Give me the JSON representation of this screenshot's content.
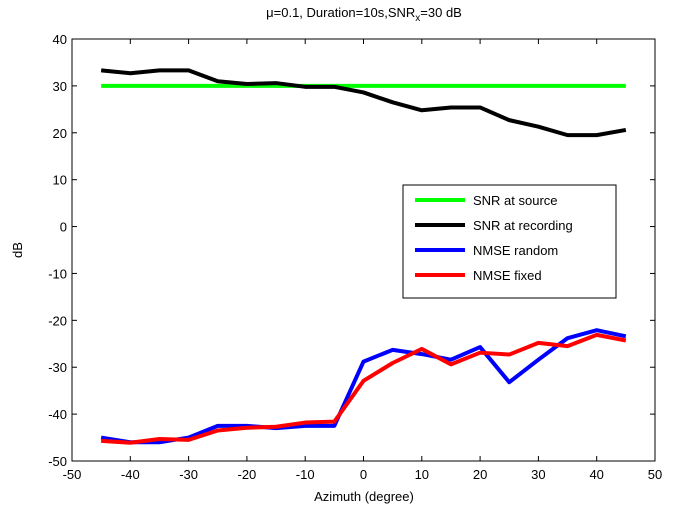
{
  "chart_data": {
    "type": "line",
    "title": {
      "prefix": "μ=0.1, Duration=10s,SNR",
      "subscript": "x",
      "suffix": "=30 dB"
    },
    "xlabel": "Azimuth (degree)",
    "ylabel": "dB",
    "xlim": [
      -50,
      50
    ],
    "ylim": [
      -50,
      40
    ],
    "xticks": [
      -50,
      -40,
      -30,
      -20,
      -10,
      0,
      10,
      20,
      30,
      40,
      50
    ],
    "yticks": [
      -50,
      -40,
      -30,
      -20,
      -10,
      0,
      10,
      20,
      30,
      40
    ],
    "grid": false,
    "legend_position": "right-middle",
    "x": [
      -45,
      -40,
      -35,
      -30,
      -25,
      -20,
      -15,
      -10,
      -5,
      0,
      5,
      10,
      15,
      20,
      25,
      30,
      35,
      40,
      45
    ],
    "series": [
      {
        "name": "SNR at source",
        "color": "#00ff00",
        "values": [
          30,
          30,
          30,
          30,
          30,
          30,
          30,
          30,
          30,
          30,
          30,
          30,
          30,
          30,
          30,
          30,
          30,
          30,
          30
        ]
      },
      {
        "name": "SNR at recording",
        "color": "#000000",
        "values": [
          33.3,
          32.7,
          33.3,
          33.3,
          31,
          30.4,
          30.6,
          29.8,
          29.8,
          28.6,
          26.5,
          24.8,
          25.4,
          25.4,
          22.7,
          21.3,
          19.5,
          19.5,
          20.6
        ]
      },
      {
        "name": "NMSE random",
        "color": "#0000ff",
        "values": [
          -45,
          -46,
          -46,
          -45,
          -42.5,
          -42.5,
          -43,
          -42.5,
          -42.5,
          -28.8,
          -26.3,
          -27.2,
          -28.4,
          -25.7,
          -33.2,
          -28.4,
          -23.8,
          -22.1,
          -23.4
        ]
      },
      {
        "name": "NMSE fixed",
        "color": "#ff0000",
        "values": [
          -45.7,
          -46.1,
          -45.3,
          -45.5,
          -43.5,
          -42.9,
          -42.7,
          -41.8,
          -41.6,
          -32.9,
          -29.1,
          -26.1,
          -29.4,
          -26.9,
          -27.3,
          -24.8,
          -25.5,
          -23.1,
          -24.3
        ]
      }
    ]
  }
}
